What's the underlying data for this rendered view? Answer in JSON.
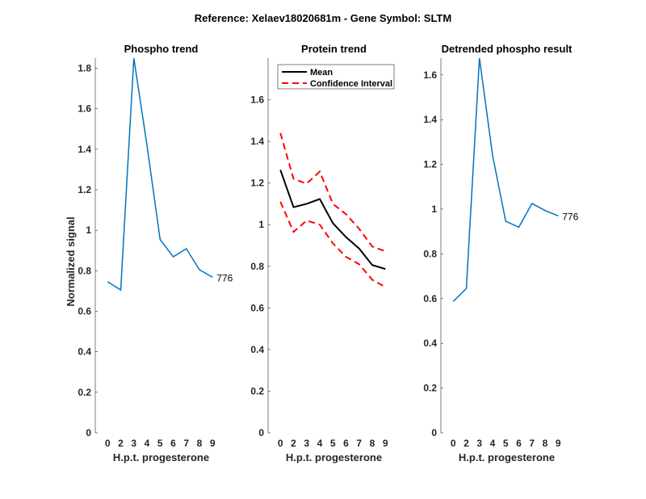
{
  "suptitle": "Reference:  Xelaev18020681m - Gene Symbol:  SLTM",
  "chart_data": [
    {
      "type": "line",
      "title": "Phospho trend",
      "xlabel": "H.p.t. progesterone",
      "ylabel": "Normalized signal",
      "categories": [
        "0",
        "2",
        "3",
        "4",
        "5",
        "6",
        "7",
        "8",
        "9"
      ],
      "ylim": [
        0,
        1.85
      ],
      "yticks": [
        0,
        0.2,
        0.4,
        0.6,
        0.8,
        1,
        1.2,
        1.4,
        1.6,
        1.8
      ],
      "series": [
        {
          "name": "Phospho",
          "color": "#0072BD",
          "values": [
            0.746,
            0.705,
            1.85,
            1.42,
            0.955,
            0.869,
            0.909,
            0.805,
            0.768
          ]
        }
      ],
      "annotation": "776"
    },
    {
      "type": "line",
      "title": "Protein trend",
      "xlabel": "H.p.t. progesterone",
      "ylabel": "",
      "categories": [
        "0",
        "2",
        "3",
        "4",
        "5",
        "6",
        "7",
        "8",
        "9"
      ],
      "ylim": [
        0,
        1.8
      ],
      "yticks": [
        0,
        0.2,
        0.4,
        0.6,
        0.8,
        1,
        1.2,
        1.4,
        1.6
      ],
      "legend": {
        "placement": "top",
        "entries": [
          "Mean",
          "Confidence Interval"
        ]
      },
      "series": [
        {
          "name": "Mean",
          "color": "#000000",
          "style": "solid",
          "values": [
            1.263,
            1.084,
            1.1,
            1.123,
            1.007,
            0.94,
            0.885,
            0.806,
            0.787
          ]
        },
        {
          "name": "Confidence Interval",
          "color": "#FF0000",
          "style": "dashed",
          "values": [
            1.44,
            1.22,
            1.197,
            1.255,
            1.1,
            1.05,
            0.98,
            0.895,
            0.872
          ]
        },
        {
          "name": "Confidence Interval",
          "color": "#FF0000",
          "style": "dashed",
          "values": [
            1.11,
            0.965,
            1.02,
            1.0,
            0.91,
            0.845,
            0.81,
            0.735,
            0.7
          ]
        }
      ]
    },
    {
      "type": "line",
      "title": "Detrended phospho result",
      "xlabel": "H.p.t. progesterone",
      "ylabel": "",
      "categories": [
        "0",
        "2",
        "3",
        "4",
        "5",
        "6",
        "7",
        "8",
        "9"
      ],
      "ylim": [
        0,
        1.675
      ],
      "yticks": [
        0,
        0.2,
        0.4,
        0.6,
        0.8,
        1,
        1.2,
        1.4,
        1.6
      ],
      "series": [
        {
          "name": "Detrended",
          "color": "#0072BD",
          "values": [
            0.587,
            0.645,
            1.675,
            1.24,
            0.946,
            0.919,
            1.025,
            0.994,
            0.97
          ]
        }
      ],
      "annotation": "776"
    }
  ]
}
